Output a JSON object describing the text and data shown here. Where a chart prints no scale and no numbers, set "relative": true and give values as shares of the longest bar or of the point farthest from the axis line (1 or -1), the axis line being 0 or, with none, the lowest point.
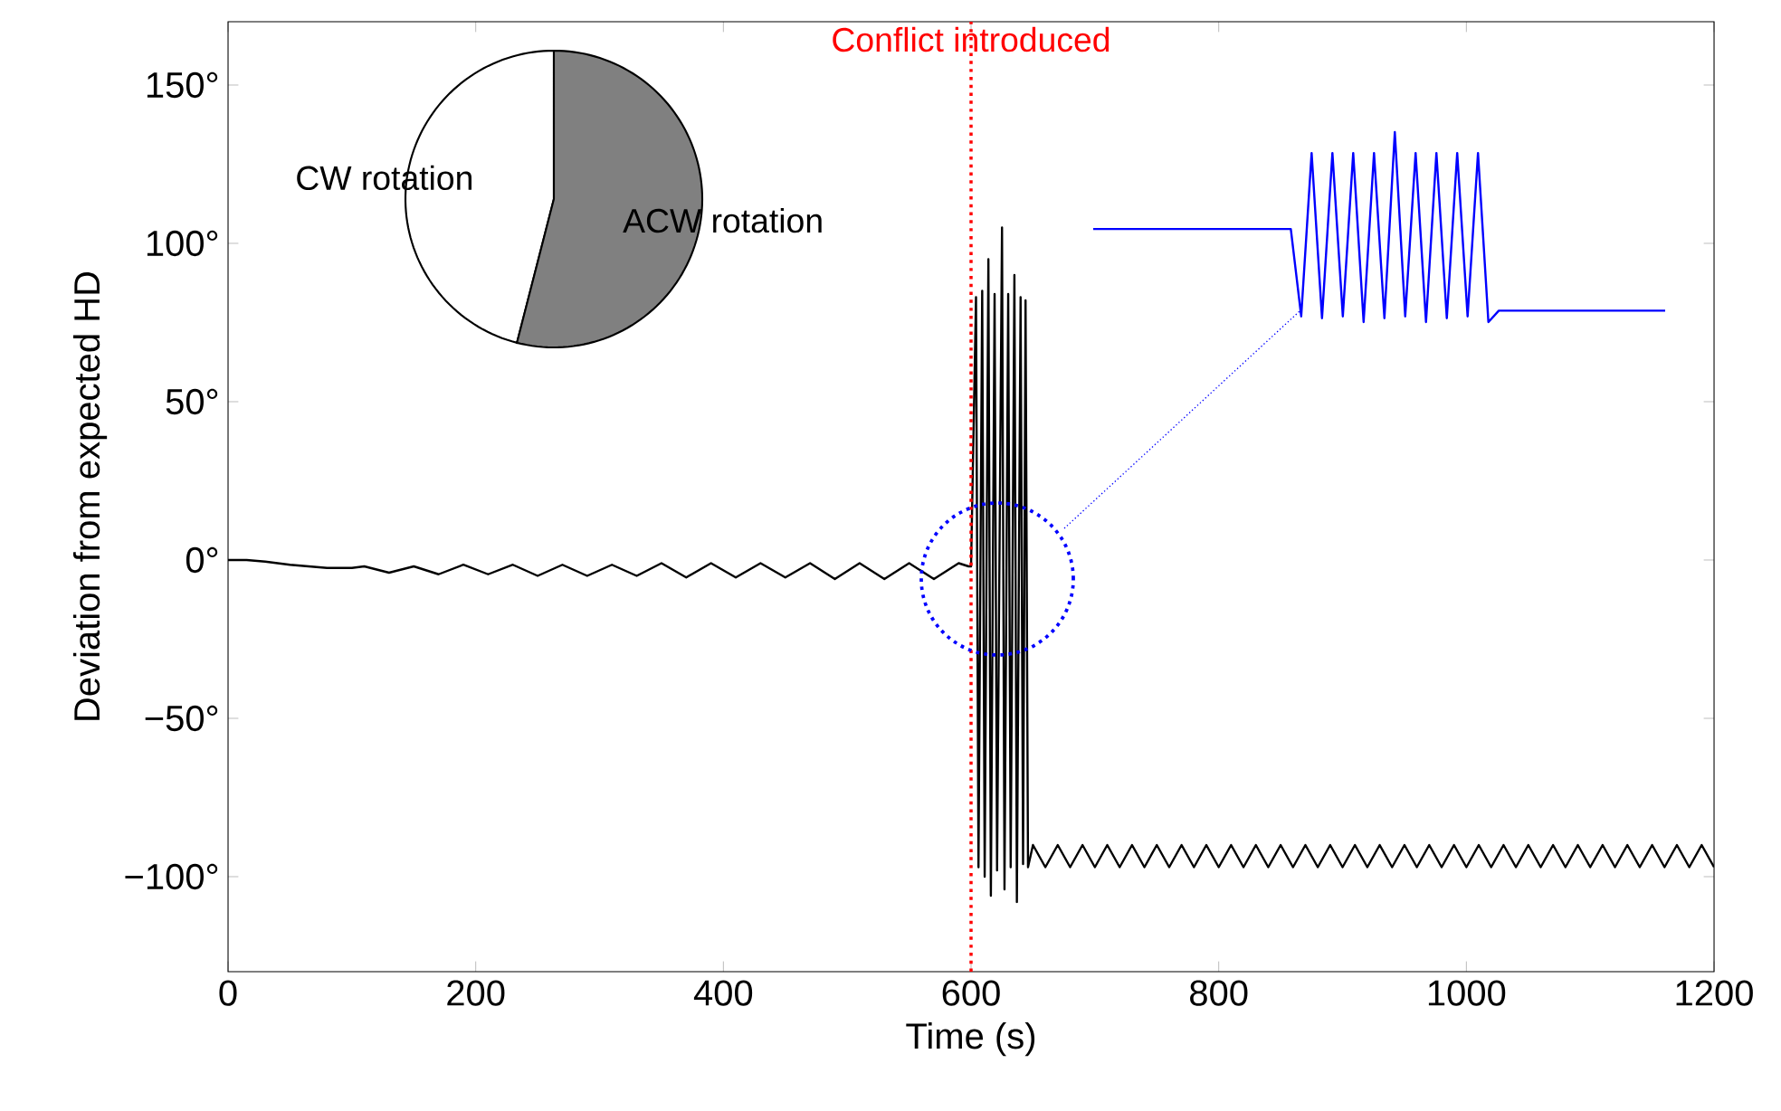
{
  "chart_data": [
    {
      "type": "line",
      "xlabel": "Time (s)",
      "ylabel": "Deviation from expected HD",
      "color": "#000000",
      "x": [
        0,
        15,
        30,
        50,
        80,
        100,
        110,
        130,
        150,
        170,
        190,
        210,
        230,
        250,
        270,
        290,
        310,
        330,
        350,
        370,
        390,
        410,
        430,
        450,
        470,
        490,
        510,
        530,
        550,
        570,
        590,
        598,
        600,
        604,
        606,
        609,
        611,
        614,
        616,
        619,
        621,
        625,
        627,
        630,
        632,
        635,
        637,
        640,
        642,
        644,
        646,
        650,
        660,
        670,
        680,
        690,
        700,
        710,
        720,
        730,
        740,
        750,
        760,
        770,
        780,
        790,
        800,
        810,
        820,
        830,
        840,
        850,
        860,
        870,
        880,
        890,
        900,
        910,
        920,
        930,
        940,
        950,
        960,
        970,
        980,
        990,
        1000,
        1010,
        1020,
        1030,
        1040,
        1050,
        1060,
        1070,
        1080,
        1090,
        1100,
        1110,
        1120,
        1130,
        1140,
        1150,
        1160,
        1170,
        1180,
        1190,
        1200
      ],
      "values": [
        0,
        0,
        -0.5,
        -1.5,
        -2.5,
        -2.5,
        -2,
        -4,
        -2,
        -4.5,
        -1.5,
        -4.5,
        -1.5,
        -5,
        -1.5,
        -5,
        -1.5,
        -5,
        -1,
        -5.5,
        -1,
        -5.5,
        -1,
        -5.5,
        -1,
        -6,
        -1,
        -6,
        -1,
        -6,
        -1,
        -2,
        -2,
        83,
        -97,
        85,
        -100,
        95,
        -106,
        84,
        -98,
        105,
        -104,
        84,
        -97,
        90,
        -108,
        83,
        -96,
        82,
        -97,
        -90,
        -97,
        -90,
        -97,
        -90,
        -97,
        -90,
        -97,
        -90,
        -97,
        -90,
        -97,
        -90,
        -97,
        -90,
        -97,
        -90,
        -97,
        -90,
        -97,
        -90,
        -97,
        -90,
        -97,
        -90,
        -97,
        -90,
        -97,
        -90,
        -97,
        -90,
        -97,
        -90,
        -97,
        -90,
        -97,
        -90,
        -97,
        -90,
        -97,
        -90,
        -97,
        -90,
        -97,
        -90,
        -97,
        -90,
        -97,
        -90,
        -97,
        -90,
        -97,
        -90,
        -97,
        -90,
        -97
      ],
      "xlim": [
        0,
        1200
      ],
      "ylim": [
        -130,
        170
      ],
      "xticks": [
        0,
        200,
        400,
        600,
        800,
        1000,
        1200
      ],
      "yticks": [
        {
          "value": -100,
          "label": "−100°"
        },
        {
          "value": -50,
          "label": "−50°"
        },
        {
          "value": 0,
          "label": "0°"
        },
        {
          "value": 50,
          "label": "50°"
        },
        {
          "value": 100,
          "label": "100°"
        },
        {
          "value": 150,
          "label": "150°"
        }
      ],
      "ref_lines": [
        {
          "axis": "x",
          "value": 600,
          "label": "Conflict introduced",
          "color": "#ff0000",
          "line_style": "dotted"
        }
      ]
    },
    {
      "type": "pie",
      "categories": [
        "CW rotation",
        "ACW rotation"
      ],
      "values": [
        46,
        54
      ],
      "colors": [
        "#ffffff",
        "#808080"
      ]
    },
    {
      "type": "line",
      "relative": true,
      "color": "#0000ff",
      "categories": [
        null,
        null,
        null,
        null,
        null,
        null,
        null,
        null,
        null,
        null,
        null,
        null,
        null,
        null,
        null,
        null,
        null,
        null,
        null,
        null,
        null,
        null,
        null,
        null,
        null,
        null,
        null,
        null,
        null,
        null,
        null,
        null,
        null,
        null,
        null,
        null,
        null,
        null,
        null,
        null,
        null,
        null,
        null,
        null,
        null,
        null,
        null,
        null,
        null,
        null,
        null,
        null,
        null,
        null,
        null,
        null
      ],
      "values": [
        0.49,
        0.49,
        0.49,
        0.49,
        0.49,
        0.49,
        0.49,
        0.49,
        0.49,
        0.49,
        0.49,
        0.49,
        0.49,
        0.49,
        0.49,
        0.49,
        0.49,
        0.49,
        0.49,
        0.49,
        0.03,
        0.89,
        0.02,
        0.89,
        0.03,
        0.89,
        0,
        0.89,
        0.02,
        1,
        0.03,
        0.89,
        0,
        0.89,
        0.02,
        0.89,
        0.03,
        0.89,
        0,
        0.06,
        0.06,
        0.06,
        0.06,
        0.06,
        0.06,
        0.06,
        0.06,
        0.06,
        0.06,
        0.06,
        0.06,
        0.06,
        0.06,
        0.06,
        0.06,
        0.06
      ]
    }
  ]
}
